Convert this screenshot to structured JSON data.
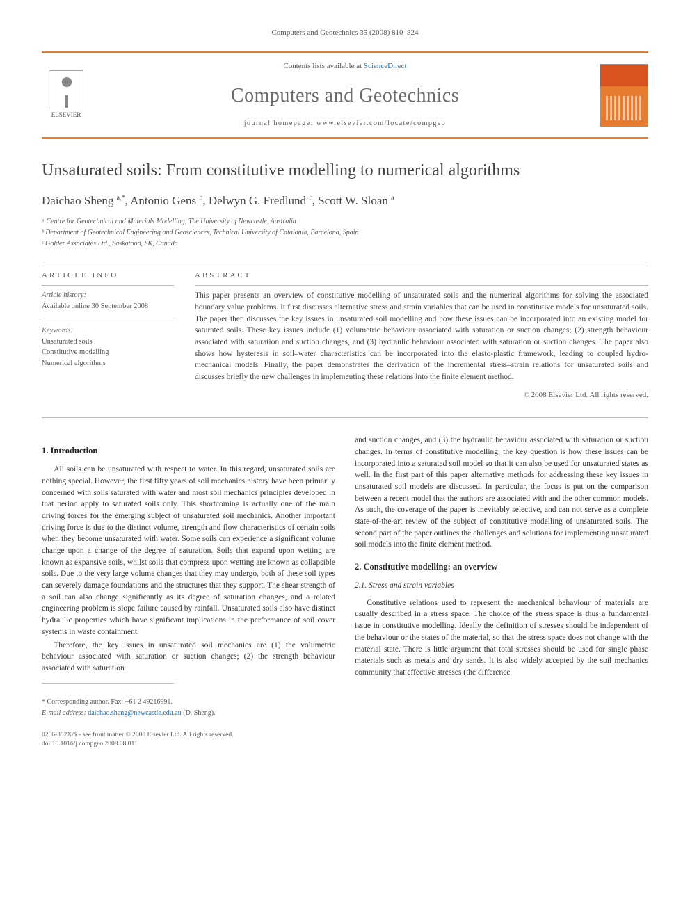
{
  "citation": "Computers and Geotechnics 35 (2008) 810–824",
  "header": {
    "publisher_name": "ELSEVIER",
    "contents_prefix": "Contents lists available at ",
    "contents_link": "ScienceDirect",
    "journal_name": "Computers and Geotechnics",
    "homepage_prefix": "journal homepage: ",
    "homepage_url": "www.elsevier.com/locate/compgeo"
  },
  "article": {
    "title": "Unsaturated soils: From constitutive modelling to numerical algorithms",
    "authors_html": "Daichao Sheng <sup>a,*</sup>, Antonio Gens <sup>b</sup>, Delwyn G. Fredlund <sup>c</sup>, Scott W. Sloan <sup>a</sup>",
    "affiliations": [
      "ᵃ Centre for Geotechnical and Materials Modelling, The University of Newcastle, Australia",
      "ᵇ Department of Geotechnical Engineering and Geosciences, Technical University of Catalonia, Barcelona, Spain",
      "ᶜ Golder Associates Ltd., Saskatoon, SK, Canada"
    ]
  },
  "info": {
    "header": "ARTICLE INFO",
    "history_label": "Article history:",
    "history_value": "Available online 30 September 2008",
    "keywords_label": "Keywords:",
    "keywords": [
      "Unsaturated soils",
      "Constitutive modelling",
      "Numerical algorithms"
    ]
  },
  "abstract": {
    "header": "ABSTRACT",
    "text": "This paper presents an overview of constitutive modelling of unsaturated soils and the numerical algorithms for solving the associated boundary value problems. It first discusses alternative stress and strain variables that can be used in constitutive models for unsaturated soils. The paper then discusses the key issues in unsaturated soil modelling and how these issues can be incorporated into an existing model for saturated soils. These key issues include (1) volumetric behaviour associated with saturation or suction changes; (2) strength behaviour associated with saturation and suction changes, and (3) hydraulic behaviour associated with saturation or suction changes. The paper also shows how hysteresis in soil–water characteristics can be incorporated into the elasto-plastic framework, leading to coupled hydro-mechanical models. Finally, the paper demonstrates the derivation of the incremental stress–strain relations for unsaturated soils and discusses briefly the new challenges in implementing these relations into the finite element method.",
    "copyright": "© 2008 Elsevier Ltd. All rights reserved."
  },
  "body": {
    "s1_title": "1. Introduction",
    "s1_p1": "All soils can be unsaturated with respect to water. In this regard, unsaturated soils are nothing special. However, the first fifty years of soil mechanics history have been primarily concerned with soils saturated with water and most soil mechanics principles developed in that period apply to saturated soils only. This shortcoming is actually one of the main driving forces for the emerging subject of unsaturated soil mechanics. Another important driving force is due to the distinct volume, strength and flow characteristics of certain soils when they become unsaturated with water. Some soils can experience a significant volume change upon a change of the degree of saturation. Soils that expand upon wetting are known as expansive soils, whilst soils that compress upon wetting are known as collapsible soils. Due to the very large volume changes that they may undergo, both of these soil types can severely damage foundations and the structures that they support. The shear strength of a soil can also change significantly as its degree of saturation changes, and a related engineering problem is slope failure caused by rainfall. Unsaturated soils also have distinct hydraulic properties which have significant implications in the performance of soil cover systems in waste containment.",
    "s1_p2": "Therefore, the key issues in unsaturated soil mechanics are (1) the volumetric behaviour associated with saturation or suction changes; (2) the strength behaviour associated with saturation",
    "s1_p2_cont": "and suction changes, and (3) the hydraulic behaviour associated with saturation or suction changes. In terms of constitutive modelling, the key question is how these issues can be incorporated into a saturated soil model so that it can also be used for unsaturated states as well. In the first part of this paper alternative methods for addressing these key issues in unsaturated soil models are discussed. In particular, the focus is put on the comparison between a recent model that the authors are associated with and the other common models. As such, the coverage of the paper is inevitably selective, and can not serve as a complete state-of-the-art review of the subject of constitutive modelling of unsaturated soils. The second part of the paper outlines the challenges and solutions for implementing unsaturated soil models into the finite element method.",
    "s2_title": "2. Constitutive modelling: an overview",
    "s2_1_title": "2.1. Stress and strain variables",
    "s2_1_p1": "Constitutive relations used to represent the mechanical behaviour of materials are usually described in a stress space. The choice of the stress space is thus a fundamental issue in constitutive modelling. Ideally the definition of stresses should be independent of the behaviour or the states of the material, so that the stress space does not change with the material state. There is little argument that total stresses should be used for single phase materials such as metals and dry sands. It is also widely accepted by the soil mechanics community that effective stresses (the difference"
  },
  "footer": {
    "corr_label": "* Corresponding author. Fax: +61 2 49216991.",
    "email_label": "E-mail address:",
    "email_value": "daichao.sheng@newcastle.edu.au",
    "email_suffix": " (D. Sheng).",
    "copyright_line": "0266-352X/$ - see front matter © 2008 Elsevier Ltd. All rights reserved.",
    "doi": "doi:10.1016/j.compgeo.2008.08.011"
  },
  "colors": {
    "accent": "#e77b2f",
    "link": "#1a6fb5",
    "cover_dark": "#d9531e",
    "text_body": "#333333",
    "text_muted": "#555555",
    "rule": "#bbbbbb"
  },
  "typography": {
    "body_pt": 11.5,
    "title_pt": 24,
    "journal_pt": 28,
    "authors_pt": 17,
    "info_pt": 10.5,
    "footer_pt": 10
  }
}
